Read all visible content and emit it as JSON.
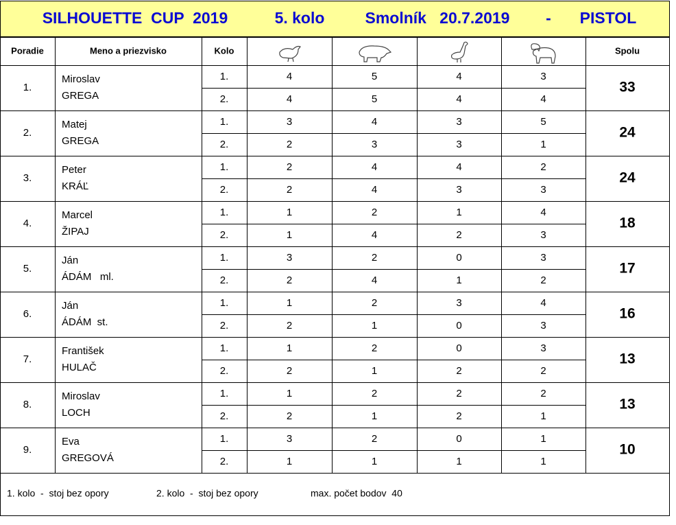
{
  "title": [
    "SILHOUETTE  CUP  2019",
    "5. kolo",
    "Smolník   20.7.2019",
    "-",
    "PISTOL"
  ],
  "header": {
    "rank": "Poradie",
    "name": "Meno a priezvisko",
    "round": "Kolo",
    "total": "Spolu"
  },
  "rows": [
    {
      "rank": "1.",
      "first": "Miroslav",
      "last": "GREGA",
      "rounds": [
        {
          "kolo": "1.",
          "scores": [
            4,
            5,
            4,
            3
          ]
        },
        {
          "kolo": "2.",
          "scores": [
            4,
            5,
            4,
            4
          ]
        }
      ],
      "total": 33
    },
    {
      "rank": "2.",
      "first": "Matej",
      "last": "GREGA",
      "rounds": [
        {
          "kolo": "1.",
          "scores": [
            3,
            4,
            3,
            5
          ]
        },
        {
          "kolo": "2.",
          "scores": [
            2,
            3,
            3,
            1
          ]
        }
      ],
      "total": 24
    },
    {
      "rank": "3.",
      "first": "Peter",
      "last": "KRÁĽ",
      "rounds": [
        {
          "kolo": "1.",
          "scores": [
            2,
            4,
            4,
            2
          ]
        },
        {
          "kolo": "2.",
          "scores": [
            2,
            4,
            3,
            3
          ]
        }
      ],
      "total": 24
    },
    {
      "rank": "4.",
      "first": "Marcel",
      "last": "ŽIPAJ",
      "rounds": [
        {
          "kolo": "1.",
          "scores": [
            1,
            2,
            1,
            4
          ]
        },
        {
          "kolo": "2.",
          "scores": [
            1,
            4,
            2,
            3
          ]
        }
      ],
      "total": 18
    },
    {
      "rank": "5.",
      "first": "Ján",
      "last": "ÁDÁM   ml.",
      "rounds": [
        {
          "kolo": "1.",
          "scores": [
            3,
            2,
            0,
            3
          ]
        },
        {
          "kolo": "2.",
          "scores": [
            2,
            4,
            1,
            2
          ]
        }
      ],
      "total": 17
    },
    {
      "rank": "6.",
      "first": "Ján",
      "last": "ÁDÁM  st.",
      "rounds": [
        {
          "kolo": "1.",
          "scores": [
            1,
            2,
            3,
            4
          ]
        },
        {
          "kolo": "2.",
          "scores": [
            2,
            1,
            0,
            3
          ]
        }
      ],
      "total": 16
    },
    {
      "rank": "7.",
      "first": "František",
      "last": "HULAČ",
      "rounds": [
        {
          "kolo": "1.",
          "scores": [
            1,
            2,
            0,
            3
          ]
        },
        {
          "kolo": "2.",
          "scores": [
            2,
            1,
            2,
            2
          ]
        }
      ],
      "total": 13
    },
    {
      "rank": "8.",
      "first": "Miroslav",
      "last": "LOCH",
      "rounds": [
        {
          "kolo": "1.",
          "scores": [
            1,
            2,
            2,
            2
          ]
        },
        {
          "kolo": "2.",
          "scores": [
            2,
            1,
            2,
            1
          ]
        }
      ],
      "total": 13
    },
    {
      "rank": "9.",
      "first": "Eva",
      "last": "GREGOVÁ",
      "rounds": [
        {
          "kolo": "1.",
          "scores": [
            3,
            2,
            0,
            1
          ]
        },
        {
          "kolo": "2.",
          "scores": [
            1,
            1,
            1,
            1
          ]
        }
      ],
      "total": 10
    }
  ],
  "footer": [
    "1. kolo  -  stoj bez opory",
    "2. kolo  -  stoj bez opory",
    "max. počet bodov  40"
  ]
}
